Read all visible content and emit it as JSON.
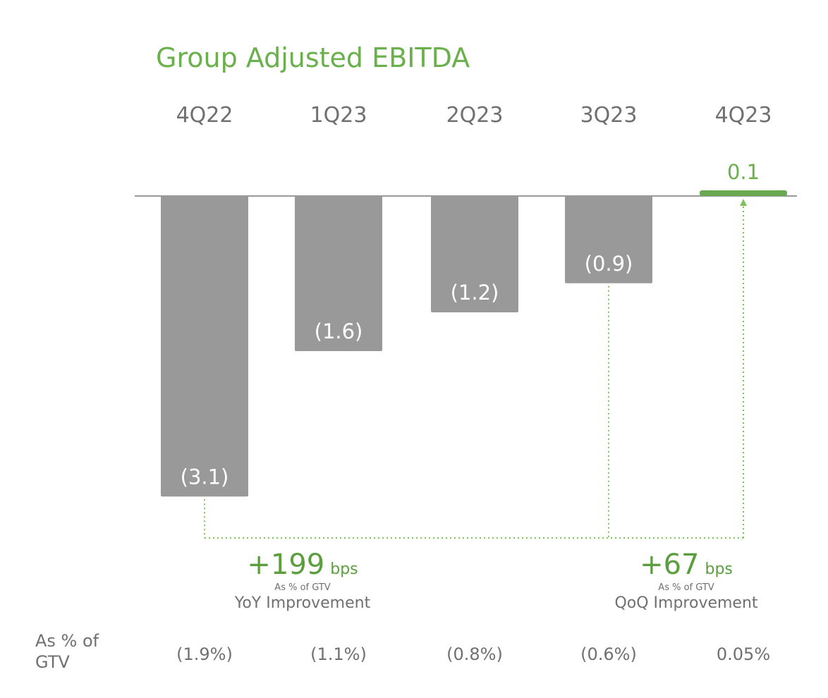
{
  "chart_data": {
    "type": "bar",
    "title": "Group Adjusted EBITDA",
    "categories": [
      "4Q22",
      "1Q23",
      "2Q23",
      "3Q23",
      "4Q23"
    ],
    "values": [
      -3.1,
      -1.6,
      -1.2,
      -0.9,
      0.1
    ],
    "value_labels": [
      "(3.1)",
      "(1.6)",
      "(1.2)",
      "(0.9)",
      "0.1"
    ],
    "pct_gtv_label": "As % of GTV",
    "pct_gtv": [
      "(1.9%)",
      "(1.1%)",
      "(0.8%)",
      "(0.6%)",
      "0.05%"
    ],
    "colors": {
      "negative": "#999999",
      "positive": "#6aa84f",
      "accent": "#6ab04c",
      "text": "#707070",
      "connector": "#7cc35a"
    },
    "annotations": {
      "yoy": {
        "value": "+199",
        "unit": "bps",
        "sub": "As % of GTV",
        "caption": "YoY Improvement",
        "from": "4Q22",
        "to": "4Q23"
      },
      "qoq": {
        "value": "+67",
        "unit": "bps",
        "sub": "As % of GTV",
        "caption": "QoQ Improvement",
        "from": "3Q23",
        "to": "4Q23"
      }
    }
  }
}
